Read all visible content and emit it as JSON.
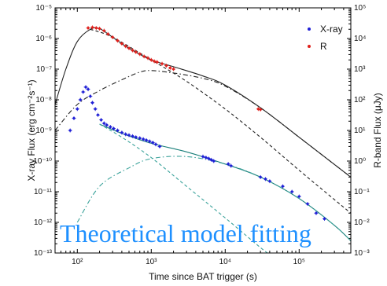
{
  "chart_data": {
    "type": "scatter",
    "xlabel": "Time since BAT trigger (s)",
    "ylabel_left": "X-ray Flux (erg cm⁻²s⁻¹)",
    "ylabel_right": "R-band Flux (μJy)",
    "x_scale": "log",
    "y_scale": "log",
    "xlim": [
      50,
      500000
    ],
    "ylim_left": [
      1e-13,
      1e-05
    ],
    "ylim_right": [
      0.001,
      100000.0
    ],
    "overlay_text": "Theoretical model fitting",
    "x_ticks": [
      {
        "value": 100,
        "label": "10²"
      },
      {
        "value": 1000,
        "label": "10³"
      },
      {
        "value": 10000,
        "label": "10⁴"
      },
      {
        "value": 100000,
        "label": "10⁵"
      }
    ],
    "y_ticks_left": [
      {
        "value": 1e-05,
        "label": "10⁻⁵"
      },
      {
        "value": 1e-06,
        "label": "10⁻⁶"
      },
      {
        "value": 1e-07,
        "label": "10⁻⁷"
      },
      {
        "value": 1e-08,
        "label": "10⁻⁸"
      },
      {
        "value": 1e-09,
        "label": "10⁻⁹"
      },
      {
        "value": 1e-10,
        "label": "10⁻¹⁰"
      },
      {
        "value": 1e-11,
        "label": "10⁻¹¹"
      },
      {
        "value": 1e-12,
        "label": "10⁻¹²"
      },
      {
        "value": 1e-13,
        "label": "10⁻¹³"
      }
    ],
    "y_ticks_right": [
      {
        "value": 100000.0,
        "label": "10⁵"
      },
      {
        "value": 10000.0,
        "label": "10⁴"
      },
      {
        "value": 1000.0,
        "label": "10³"
      },
      {
        "value": 100.0,
        "label": "10²"
      },
      {
        "value": 10.0,
        "label": "10¹"
      },
      {
        "value": 1.0,
        "label": "10⁰"
      },
      {
        "value": 0.1,
        "label": "10⁻¹"
      },
      {
        "value": 0.01,
        "label": "10⁻²"
      },
      {
        "value": 0.001,
        "label": "10⁻³"
      }
    ],
    "series": [
      {
        "name": "X-ray",
        "color": "#1f1fd6",
        "marker": "point",
        "points": [
          [
            80,
            1e-09
          ],
          [
            90,
            2.5e-09
          ],
          [
            100,
            5e-09
          ],
          [
            110,
            1e-08
          ],
          [
            120,
            1.8e-08
          ],
          [
            130,
            2.6e-08
          ],
          [
            140,
            2.2e-08
          ],
          [
            150,
            1.3e-08
          ],
          [
            160,
            8e-09
          ],
          [
            175,
            5e-09
          ],
          [
            190,
            3.2e-09
          ],
          [
            210,
            2.2e-09
          ],
          [
            230,
            1.7e-09
          ],
          [
            250,
            1.5e-09
          ],
          [
            280,
            1.3e-09
          ],
          [
            310,
            1.15e-09
          ],
          [
            350,
            1e-09
          ],
          [
            400,
            8.5e-10
          ],
          [
            450,
            7.5e-10
          ],
          [
            500,
            7e-10
          ],
          [
            560,
            6.5e-10
          ],
          [
            620,
            6e-10
          ],
          [
            700,
            5.6e-10
          ],
          [
            780,
            5.2e-10
          ],
          [
            860,
            4.8e-10
          ],
          [
            950,
            4.4e-10
          ],
          [
            1050,
            4e-10
          ],
          [
            1150,
            3.5e-10
          ],
          [
            1300,
            3e-10
          ],
          [
            5000,
            1.4e-10
          ],
          [
            5500,
            1.3e-10
          ],
          [
            6000,
            1.2e-10
          ],
          [
            6500,
            1.1e-10
          ],
          [
            7000,
            1e-10
          ],
          [
            11000,
            8e-11
          ],
          [
            12000,
            7e-11
          ],
          [
            30000,
            3e-11
          ],
          [
            35000,
            2.6e-11
          ],
          [
            40000,
            2.2e-11
          ],
          [
            60000,
            1.5e-11
          ],
          [
            80000,
            1e-11
          ],
          [
            100000,
            7e-12
          ],
          [
            130000,
            4e-12
          ],
          [
            170000,
            2e-12
          ],
          [
            220000,
            1.3e-12
          ]
        ]
      },
      {
        "name": "R",
        "color": "#e0201c",
        "marker": "point",
        "points": [
          [
            140,
            2.2e-06
          ],
          [
            160,
            2.3e-06
          ],
          [
            180,
            2.2e-06
          ],
          [
            200,
            2.1e-06
          ],
          [
            230,
            1.8e-06
          ],
          [
            260,
            1.4e-06
          ],
          [
            300,
            1.1e-06
          ],
          [
            350,
            8.5e-07
          ],
          [
            400,
            6.8e-07
          ],
          [
            450,
            5.6e-07
          ],
          [
            500,
            4.8e-07
          ],
          [
            560,
            4.1e-07
          ],
          [
            620,
            3.6e-07
          ],
          [
            700,
            3.1e-07
          ],
          [
            800,
            2.6e-07
          ],
          [
            900,
            2.3e-07
          ],
          [
            1000,
            2e-07
          ],
          [
            1100,
            1.8e-07
          ],
          [
            1200,
            1.7e-07
          ],
          [
            1400,
            1.5e-07
          ],
          [
            1600,
            1.3e-07
          ],
          [
            1800,
            1.1e-07
          ],
          [
            2000,
            1e-07
          ],
          [
            28000,
            5e-09
          ],
          [
            30000,
            4.8e-09
          ]
        ]
      }
    ],
    "model_curves": [
      {
        "id": "model-total-optical",
        "color": "#222222",
        "style": "solid",
        "points": [
          [
            50,
            7e-09
          ],
          [
            70,
            1e-07
          ],
          [
            100,
            8e-07
          ],
          [
            150,
            2e-06
          ],
          [
            200,
            2.1e-06
          ],
          [
            300,
            1.1e-06
          ],
          [
            500,
            4.8e-07
          ],
          [
            1000,
            2e-07
          ],
          [
            2000,
            1.2e-07
          ],
          [
            5000,
            6e-08
          ],
          [
            10000,
            3e-08
          ],
          [
            30000,
            5.5e-09
          ],
          [
            100000,
            6e-10
          ],
          [
            500000,
            3e-11
          ]
        ]
      },
      {
        "id": "model-reverse-shock",
        "color": "#222222",
        "style": "dash",
        "points": [
          [
            150,
            2e-06
          ],
          [
            300,
            1.1e-06
          ],
          [
            1000,
            2e-07
          ],
          [
            3000,
            4e-08
          ],
          [
            10000,
            5e-09
          ],
          [
            30000,
            6e-10
          ],
          [
            100000,
            5e-11
          ],
          [
            500000,
            2e-12
          ]
        ]
      },
      {
        "id": "model-forward-shock-optical",
        "color": "#222222",
        "style": "dashdot",
        "points": [
          [
            50,
            1e-09
          ],
          [
            100,
            7e-09
          ],
          [
            200,
            2e-08
          ],
          [
            400,
            4.5e-08
          ],
          [
            700,
            8e-08
          ],
          [
            1000,
            9e-08
          ],
          [
            2000,
            7.5e-08
          ],
          [
            5000,
            5e-08
          ],
          [
            10000,
            2.8e-08
          ],
          [
            30000,
            5.5e-09
          ],
          [
            100000,
            6e-10
          ],
          [
            500000,
            3e-11
          ]
        ]
      },
      {
        "id": "model-total-xray",
        "color": "#1a7f7a",
        "style": "solid",
        "points": [
          [
            200,
            1.6e-09
          ],
          [
            400,
            8e-10
          ],
          [
            1000,
            3.8e-10
          ],
          [
            3000,
            2e-10
          ],
          [
            10000,
            8e-11
          ],
          [
            30000,
            3e-11
          ],
          [
            100000,
            6e-12
          ],
          [
            300000,
            8e-13
          ],
          [
            500000,
            2.5e-13
          ]
        ]
      },
      {
        "id": "model-reverse-shock-xray",
        "color": "#3aa29a",
        "style": "dash",
        "points": [
          [
            200,
            1.6e-09
          ],
          [
            400,
            6e-10
          ],
          [
            1000,
            1.3e-10
          ],
          [
            3000,
            1.5e-11
          ],
          [
            10000,
            1.4e-12
          ],
          [
            30000,
            1.5e-13
          ],
          [
            50000,
            6e-14
          ]
        ]
      },
      {
        "id": "model-forward-shock-xray",
        "color": "#3aa29a",
        "style": "dashdot",
        "points": [
          [
            100,
            1e-12
          ],
          [
            200,
            1.5e-11
          ],
          [
            500,
            6e-11
          ],
          [
            1000,
            1.2e-10
          ],
          [
            3000,
            1.4e-10
          ],
          [
            10000,
            8e-11
          ],
          [
            30000,
            3e-11
          ],
          [
            100000,
            6e-12
          ],
          [
            300000,
            8e-13
          ],
          [
            500000,
            2.5e-13
          ]
        ]
      }
    ]
  }
}
